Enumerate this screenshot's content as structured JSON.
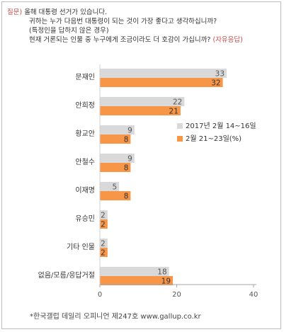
{
  "question": {
    "tag": "질문)",
    "line1": "올해 대통령 선거가 있습니다.",
    "line2": "귀하는 누가 다음번 대통령이 되는 것이 가장 좋다고 생각하십니까?",
    "line3": "(특정인을 답하지 않은 경우)",
    "line4": "현재 거론되는 인물 중 누구에게 조금이라도 더 호감이 가십니까?",
    "line4_note": "(자유응답)"
  },
  "colors": {
    "series1": "#d9d9d9",
    "series2": "#f79646",
    "question_tag": "#c0504d"
  },
  "chart_data": {
    "type": "bar",
    "orientation": "horizontal",
    "categories": [
      "문재인",
      "안희정",
      "황교안",
      "안철수",
      "이재명",
      "유승민",
      "기타 인물",
      "없음/모름/응답거절"
    ],
    "series": [
      {
        "name": "2017년 2월 14~16일",
        "values": [
          33,
          22,
          9,
          9,
          5,
          2,
          2,
          18
        ]
      },
      {
        "name": "2월 21~23일(%)",
        "values": [
          32,
          21,
          8,
          8,
          8,
          2,
          2,
          19
        ]
      }
    ],
    "xlim": [
      0,
      40
    ],
    "xticks": [
      "0",
      "20",
      "40"
    ],
    "legend_position": "right",
    "grid": false
  },
  "footnote": "*한국갤럽 데일리 오피니언 제247호 www.gallup.co.kr"
}
